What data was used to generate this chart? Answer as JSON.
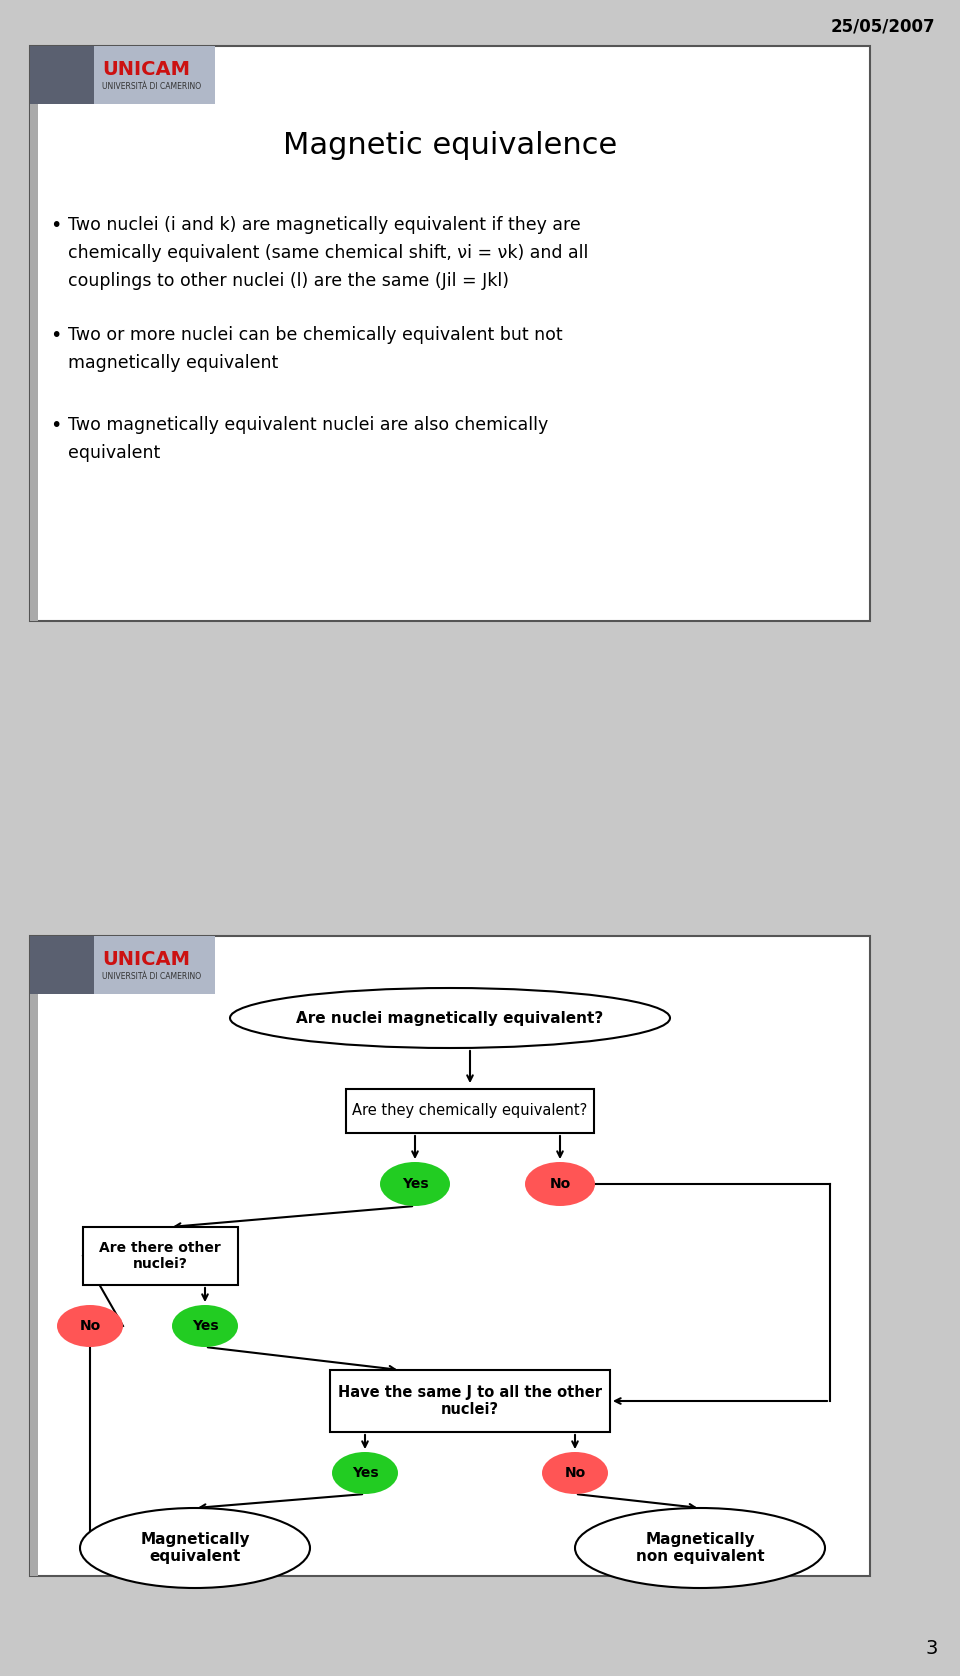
{
  "date_text": "25/05/2007",
  "page_number": "3",
  "bg_color": "#c8c8c8",
  "slide_bg": "#ffffff",
  "slide1": {
    "title": "Magnetic equivalence",
    "bullet1_line1": "Two nuclei (i and k) are magnetically equivalent if they are",
    "bullet1_line2": "chemically equivalent (same chemical shift, νi = νk) and all",
    "bullet1_line3": "couplings to other nuclei (l) are the same (Jil = Jkl)",
    "bullet2_line1": "Two or more nuclei can be chemically equivalent but not",
    "bullet2_line2": "magnetically equivalent",
    "bullet3_line1": "Two magnetically equivalent nuclei are also chemically",
    "bullet3_line2": "equivalent"
  },
  "slide2": {
    "start_node": "Are nuclei magnetically equivalent?",
    "chem_box": "Are they chemically equivalent?",
    "other_nuclei_box": "Are there other\nnuclei?",
    "same_j_box": "Have the same J to all the other\nnuclei?",
    "mag_eq": "Magnetically\nequivalent",
    "mag_neq": "Magnetically\nnon equivalent",
    "yes_color": "#22cc22",
    "no_color": "#ff5555"
  }
}
